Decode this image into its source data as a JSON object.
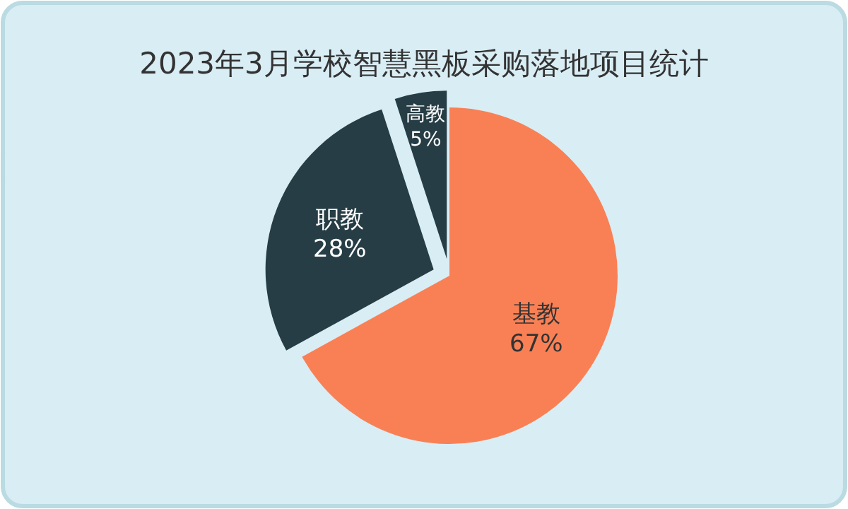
{
  "chart_data": {
    "type": "pie",
    "title": "2023年3月学校智慧黑板采购落地项目统计",
    "categories": [
      "基教",
      "职教",
      "高教"
    ],
    "values": [
      67,
      28,
      5
    ],
    "colors": [
      "#f98055",
      "#263d45",
      "#263d45"
    ],
    "value_labels": [
      "67%",
      "28%",
      "5%"
    ],
    "legend": false
  }
}
